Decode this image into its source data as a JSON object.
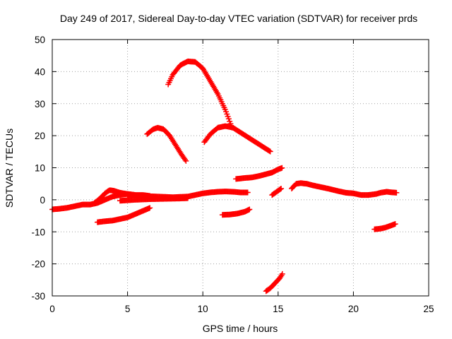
{
  "chart_data": {
    "type": "scatter",
    "title": "Day 249 of 2017, Sidereal Day-to-day VTEC variation (SDTVAR) for receiver prds",
    "xlabel": "GPS time / hours",
    "ylabel": "SDTVAR / TECUs",
    "xlim": [
      0,
      25
    ],
    "ylim": [
      -30,
      50
    ],
    "xticks": [
      0,
      5,
      10,
      15,
      20,
      25
    ],
    "yticks": [
      -30,
      -20,
      -10,
      0,
      10,
      20,
      30,
      40,
      50
    ],
    "grid": true,
    "marker": "+",
    "color": "#ff0000",
    "series": [
      {
        "name": "arc-big-peak",
        "x": [
          7.7,
          8.0,
          8.5,
          9.0,
          9.5,
          10.0,
          10.5,
          11.0,
          11.5,
          11.9
        ],
        "y": [
          36,
          39,
          42,
          43.2,
          43,
          41,
          37,
          33,
          28,
          23
        ]
      },
      {
        "name": "arc-left-hump",
        "x": [
          6.3,
          6.7,
          7.0,
          7.4,
          7.8,
          8.2,
          8.6,
          8.9
        ],
        "y": [
          20.5,
          22,
          22.5,
          22,
          20,
          17,
          14,
          12
        ]
      },
      {
        "name": "arc-mid-hump",
        "x": [
          10.1,
          10.5,
          11.0,
          11.5,
          12.0,
          12.5,
          13.0,
          13.5,
          14.0,
          14.5
        ],
        "y": [
          18,
          20.5,
          22.5,
          23,
          22.5,
          21,
          19.5,
          18,
          16.5,
          15
        ]
      },
      {
        "name": "rise-near-10",
        "x": [
          12.2,
          12.8,
          13.3,
          13.8,
          14.2,
          14.6,
          15.0,
          15.3
        ],
        "y": [
          6.5,
          6.8,
          7,
          7.5,
          8,
          8.5,
          9.5,
          10
        ]
      },
      {
        "name": "low-left-band",
        "x": [
          0.0,
          0.5,
          1.0,
          1.5,
          2.0,
          2.5,
          3.0,
          3.5,
          4.0,
          4.5,
          5.0,
          5.5,
          6.0,
          6.5
        ],
        "y": [
          -3,
          -2.8,
          -2.5,
          -2,
          -1.5,
          -1.5,
          -1,
          0,
          1,
          1.5,
          1.8,
          1.5,
          1.5,
          1.2
        ]
      },
      {
        "name": "hump-near-4",
        "x": [
          2.8,
          3.2,
          3.5,
          3.8,
          4.1,
          4.5,
          5.0,
          5.5
        ],
        "y": [
          -1,
          0.5,
          2,
          3,
          2.8,
          2.2,
          1.8,
          1.5
        ]
      },
      {
        "name": "band-5-to-13",
        "x": [
          5.0,
          6.0,
          7.0,
          8.0,
          9.0,
          10.0,
          10.5,
          11.0,
          11.5,
          12.0,
          12.5,
          13.0
        ],
        "y": [
          1.5,
          1.2,
          1,
          0.8,
          1,
          2,
          2.3,
          2.5,
          2.6,
          2.5,
          2.3,
          2.3
        ]
      },
      {
        "name": "band-low-lower",
        "x": [
          4.5,
          5.5,
          6.5,
          7.5,
          8.5,
          9.0
        ],
        "y": [
          -0.3,
          0,
          0.2,
          0.3,
          0.4,
          0.5
        ]
      },
      {
        "name": "neg-band-left",
        "x": [
          3.0,
          3.5,
          4.0,
          4.5,
          5.0,
          5.5,
          6.0,
          6.5
        ],
        "y": [
          -7,
          -6.7,
          -6.5,
          -6,
          -5.5,
          -4.5,
          -3.5,
          -2.5
        ]
      },
      {
        "name": "neg-band-mid",
        "x": [
          11.3,
          11.8,
          12.3,
          12.8,
          13.1
        ],
        "y": [
          -4.7,
          -4.6,
          -4.3,
          -3.7,
          -3
        ]
      },
      {
        "name": "rise-15",
        "x": [
          14.6,
          14.9,
          15.2
        ],
        "y": [
          1.5,
          2.5,
          3.5
        ]
      },
      {
        "name": "deep-neg",
        "x": [
          14.2,
          14.5,
          14.8,
          15.1,
          15.3
        ],
        "y": [
          -28.5,
          -27.5,
          -26,
          -24.5,
          -23
        ]
      },
      {
        "name": "right-hump",
        "x": [
          15.9,
          16.2,
          16.5,
          16.9,
          17.3,
          17.8,
          18.3,
          19.0,
          19.5,
          20.0,
          20.5,
          21.0
        ],
        "y": [
          3.5,
          5,
          5.2,
          5,
          4.5,
          4,
          3.5,
          2.7,
          2.2,
          2,
          1.5,
          1.5
        ]
      },
      {
        "name": "right-tail",
        "x": [
          21.0,
          21.5,
          21.8,
          22.2,
          22.6,
          22.9
        ],
        "y": [
          1.5,
          1.8,
          2.2,
          2.5,
          2.3,
          2.2
        ]
      },
      {
        "name": "neg-right",
        "x": [
          21.4,
          21.8,
          22.1,
          22.4,
          22.8
        ],
        "y": [
          -9.2,
          -9,
          -8.7,
          -8.2,
          -7.5
        ]
      }
    ]
  }
}
